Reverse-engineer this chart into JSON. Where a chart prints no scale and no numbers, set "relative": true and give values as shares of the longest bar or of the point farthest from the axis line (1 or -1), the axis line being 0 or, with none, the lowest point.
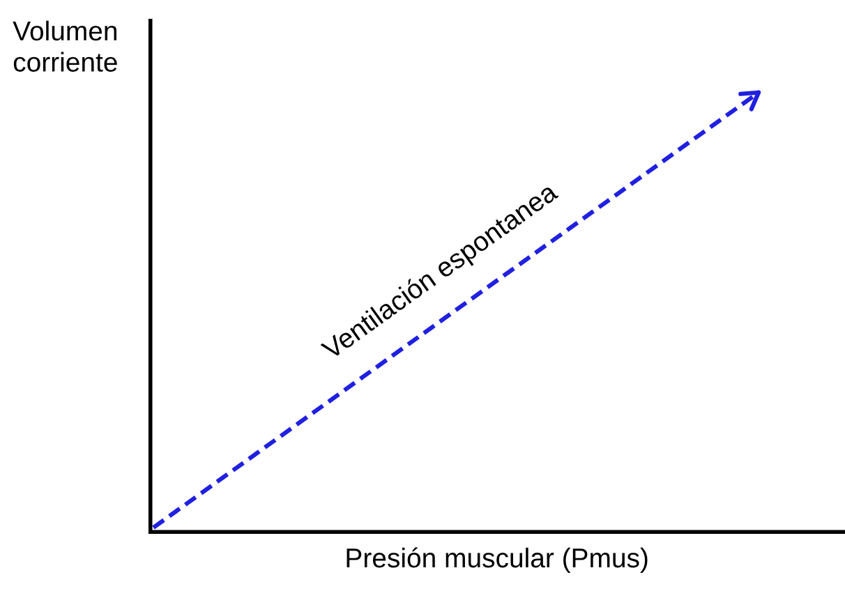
{
  "chart_data": {
    "type": "line",
    "relative": true,
    "xlabel": "Presión muscular (Pmus)",
    "ylabel": "Volumen\ncorriente",
    "categories": [
      null,
      null
    ],
    "series": [
      {
        "name": "Ventilación espontanea",
        "color": "#2020e0",
        "values": [
          0,
          1
        ]
      }
    ],
    "line_style": "dashed",
    "marker": "none",
    "grid": false,
    "legend": false,
    "tick_labels": false
  }
}
